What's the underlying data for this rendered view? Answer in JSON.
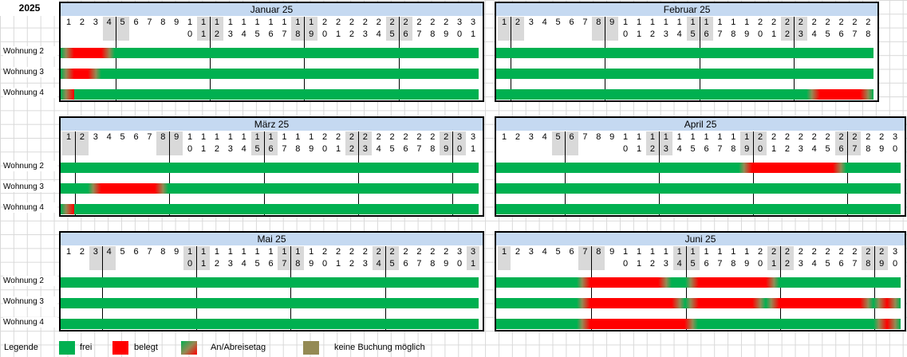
{
  "year": "2025",
  "rows": [
    "Wohnung 2",
    "Wohnung 3",
    "Wohnung 4"
  ],
  "legend": {
    "title": "Legende",
    "items": [
      {
        "label": "frei",
        "kind": "frei"
      },
      {
        "label": "belegt",
        "kind": "belegt"
      },
      {
        "label": "An/Abreisetag",
        "kind": "wechsel"
      },
      {
        "label": "keine Buchung möglich",
        "kind": "keine"
      }
    ]
  },
  "colors": {
    "frei": "#00b050",
    "belegt": "#ff0000",
    "keine": "#948a54",
    "header": "#c5d9f1",
    "weekend": "#d9d9d9"
  },
  "months": [
    {
      "title": "Januar 25",
      "days": 31,
      "weekends": [
        4,
        5,
        11,
        12,
        18,
        19,
        25,
        26
      ],
      "weeklines": [
        5,
        12,
        19,
        26
      ],
      "bookings": [
        [
          [
            1,
            4
          ]
        ],
        [
          [
            1,
            3
          ]
        ],
        [
          [
            1,
            1
          ]
        ]
      ]
    },
    {
      "title": "Februar 25",
      "days": 28,
      "weekends": [
        1,
        2,
        8,
        9,
        15,
        16,
        22,
        23
      ],
      "weeklines": [
        2,
        9,
        16,
        23
      ],
      "bookings": [
        [],
        [],
        [
          [
            24,
            28
          ]
        ]
      ]
    },
    {
      "title": "März 25",
      "days": 31,
      "weekends": [
        1,
        2,
        8,
        9,
        15,
        16,
        22,
        23,
        29,
        30
      ],
      "weeklines": [
        2,
        9,
        16,
        23,
        30
      ],
      "bookings": [
        [],
        [
          [
            3,
            8
          ]
        ],
        [
          [
            1,
            1
          ]
        ]
      ]
    },
    {
      "title": "April 25",
      "days": 30,
      "weekends": [
        5,
        6,
        12,
        13,
        19,
        20,
        26,
        27
      ],
      "weeklines": [
        6,
        13,
        20,
        27
      ],
      "bookings": [
        [
          [
            19,
            26
          ]
        ],
        [],
        []
      ]
    },
    {
      "title": "Mai 25",
      "days": 31,
      "weekends": [
        3,
        4,
        10,
        11,
        17,
        18,
        24,
        25,
        31
      ],
      "weeklines": [
        4,
        11,
        18,
        25
      ],
      "bookings": [
        [],
        [],
        []
      ]
    },
    {
      "title": "Juni 25",
      "days": 30,
      "weekends": [
        1,
        7,
        8,
        14,
        15,
        21,
        22,
        28,
        29
      ],
      "weeklines": [
        8,
        15,
        22,
        29
      ],
      "bookings": [
        [
          [
            7,
            13
          ],
          [
            15,
            21
          ]
        ],
        [
          [
            7,
            14
          ],
          [
            15,
            20
          ],
          [
            21,
            28
          ],
          [
            29,
            30
          ]
        ],
        [
          [
            7,
            15
          ],
          [
            29,
            30
          ]
        ]
      ]
    }
  ]
}
